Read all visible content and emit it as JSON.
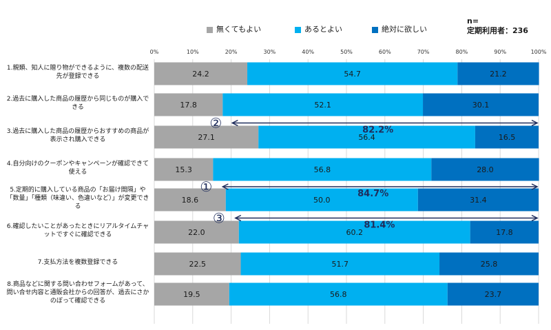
{
  "chart_data": {
    "type": "bar",
    "orientation": "horizontal",
    "stacked": true,
    "xlim": [
      0,
      100
    ],
    "ticks": [
      "0%",
      "10%",
      "20%",
      "30%",
      "40%",
      "50%",
      "60%",
      "70%",
      "80%",
      "90%",
      "100%"
    ],
    "grid": true,
    "legend_position": "top",
    "categories": [
      "1.親類、知人に贈り物ができるように、複数の配送先が登録できる",
      "2.過去に購入した商品の履歴から同じものが購入できる",
      "3.過去に購入した商品の履歴からおすすめの商品が表示され購入できる",
      "4.自分向けのクーポンやキャンペーンが確認できて使える",
      "5.定期的に購入している商品の「お届け間隔」や「数量」「種類（味違い、色違いなど）」が変更できる",
      "6.確認したいことがあったときにリアルタイムチャットですぐに確認できる",
      "7.支払方法を複数登録できる",
      "8.商品などに関する問い合わせフォームがあって、問い合せ内容と通販会社からの回答が、過去にさかのぼって確認できる"
    ],
    "series": [
      {
        "name": "無くてもよい",
        "color": "#a6a6a6",
        "values": [
          24.2,
          17.8,
          27.1,
          15.3,
          18.6,
          22.0,
          22.5,
          19.5
        ]
      },
      {
        "name": "あるとよい",
        "color": "#00b0f0",
        "values": [
          54.7,
          52.1,
          56.4,
          56.8,
          50.0,
          60.2,
          51.7,
          56.8
        ]
      },
      {
        "name": "絶対に欲しい",
        "color": "#0070c0",
        "values": [
          21.2,
          30.1,
          16.5,
          28.0,
          31.4,
          17.8,
          25.8,
          23.7
        ]
      }
    ],
    "annotations": [
      {
        "marker": "②",
        "text": "82.2%",
        "after_category": 1,
        "from": 17.8
      },
      {
        "marker": "①",
        "text": "84.7%",
        "after_category": 3,
        "from": 15.3
      },
      {
        "marker": "③",
        "text": "81.4%",
        "after_category": 4,
        "from": 18.6
      }
    ]
  },
  "sample_note": {
    "line1": "n=",
    "line2": "定期利用者：236"
  },
  "colors": {
    "grid": "#d9d9d9",
    "arrow": "#1f2d5c"
  }
}
